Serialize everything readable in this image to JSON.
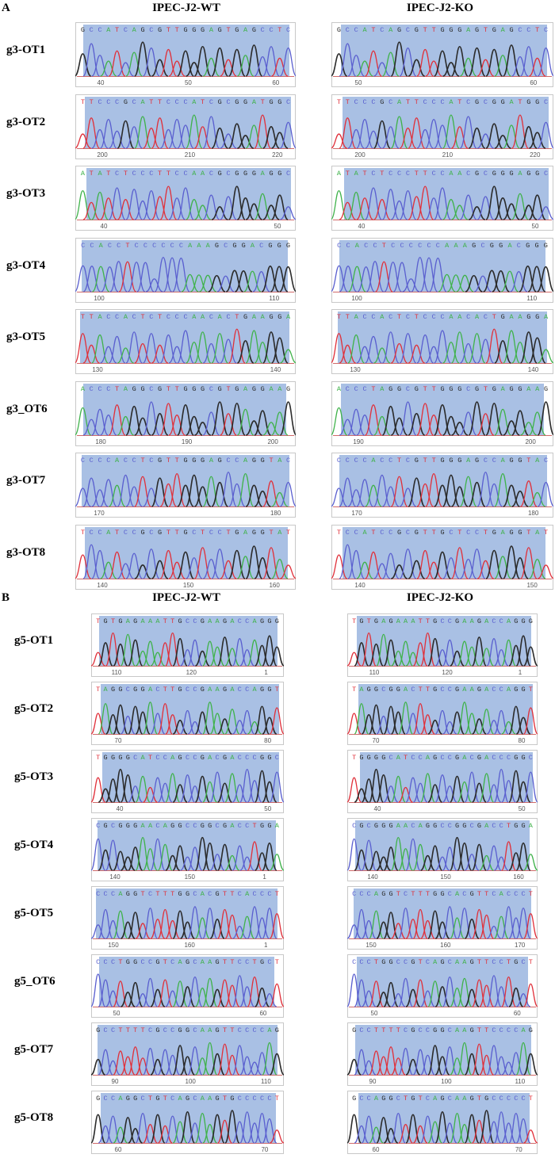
{
  "panels": [
    {
      "letter": "A",
      "columns": [
        "IPEC-J2-WT",
        "IPEC-J2-KO"
      ],
      "rows": [
        {
          "label": "g3-OT1",
          "wt": {
            "seq": "GCCATCAGCGTTGGGAGTGAGCCTC",
            "ticks": [
              "40",
              "50",
              "60"
            ]
          },
          "ko": {
            "seq": "GCCATCAGCGTTGGGAGTGAGCCTC",
            "ticks": [
              "50",
              "60"
            ]
          }
        },
        {
          "label": "g3-OT2",
          "wt": {
            "seq": "TTCCCGCATTCCCATCGCGGATGGC",
            "ticks": [
              "200",
              "210",
              "220"
            ]
          },
          "ko": {
            "seq": "TTCCCGCATTCCCATCGCGGATGGC",
            "ticks": [
              "200",
              "210",
              "220"
            ]
          }
        },
        {
          "label": "g3-OT3",
          "wt": {
            "seq": "ATATCTCCCTTCCAACGCGGGAGGC",
            "ticks": [
              "40",
              "50"
            ]
          },
          "ko": {
            "seq": "ATATCTCCCTTCCAACGCGGGAGGC",
            "ticks": [
              "40",
              "50"
            ]
          }
        },
        {
          "label": "g3-OT4",
          "wt": {
            "seq": "CCACCTCCCCCCAAAGCGGACGGG",
            "ticks": [
              "100",
              "110"
            ]
          },
          "ko": {
            "seq": "CCACCTCCCCCCAAAGCGGACGGG",
            "ticks": [
              "100",
              "110"
            ]
          }
        },
        {
          "label": "g3-OT5",
          "wt": {
            "seq": "TTACCACTCTCCCAACACTGAAGGA",
            "ticks": [
              "130",
              "140"
            ]
          },
          "ko": {
            "seq": "TTACCACTCTCCCAACACTGAAGGA",
            "ticks": [
              "130",
              "140"
            ]
          }
        },
        {
          "label": "g3_OT6",
          "wt": {
            "seq": "ACCCTAGGCGTTGGGCGTGAGGAAG",
            "ticks": [
              "180",
              "190",
              "200"
            ]
          },
          "ko": {
            "seq": "ACCCTAGGCGTTGGGCGTGAGGAAG",
            "ticks": [
              "190",
              "200"
            ]
          }
        },
        {
          "label": "g3-OT7",
          "wt": {
            "seq": "CCCCACCTCGTTGGGAGCCAGGTAC",
            "ticks": [
              "170",
              "180"
            ]
          },
          "ko": {
            "seq": "CCCCACCTCGTTGGGAGCCAGGTAC",
            "ticks": [
              "170",
              "180"
            ]
          }
        },
        {
          "label": "g3-OT8",
          "wt": {
            "seq": "TCCATCCGCGTTGCTCCTGAGGTAT",
            "ticks": [
              "140",
              "150",
              "160"
            ]
          },
          "ko": {
            "seq": "TCCATCCGCGTTGCTCCTGAGGTAT",
            "ticks": [
              "140",
              "150"
            ]
          }
        }
      ]
    },
    {
      "letter": "B",
      "columns": [
        "IPEC-J2-WT",
        "IPEC-J2-KO"
      ],
      "rows": [
        {
          "label": "g5-OT1",
          "wt": {
            "seq": "TGTGAGAAATTGCCGAAGACCAGGG",
            "ticks": [
              "110",
              "120",
              "1"
            ]
          },
          "ko": {
            "seq": "TGTGAGAAATTGCCGAAGACCAGGG",
            "ticks": [
              "110",
              "120",
              "1"
            ]
          }
        },
        {
          "label": "g5-OT2",
          "wt": {
            "seq": "TAGGCGGACTTGCCGAAGACCAGGT",
            "ticks": [
              "70",
              "80"
            ]
          },
          "ko": {
            "seq": "TAGGCGGACTTGCCGAAGACCAGGT",
            "ticks": [
              "70",
              "80"
            ]
          }
        },
        {
          "label": "g5-OT3",
          "wt": {
            "seq": "TGGGGCATCCAGCCGACGACCCGGC",
            "ticks": [
              "40",
              "50"
            ]
          },
          "ko": {
            "seq": "TGGGGCATCCAGCCGACGACCCGGC",
            "ticks": [
              "40",
              "50"
            ]
          }
        },
        {
          "label": "g5-OT4",
          "wt": {
            "seq": "CGCGGGAACAGGCCGGCGACCTGGA",
            "ticks": [
              "140",
              "150",
              "1"
            ]
          },
          "ko": {
            "seq": "CGCGGGAACAGGCCGGCGACCTGGA",
            "ticks": [
              "140",
              "150",
              "160"
            ]
          }
        },
        {
          "label": "g5-OT5",
          "wt": {
            "seq": "CCCAGGTCTTTGGCACGTTCACCCT",
            "ticks": [
              "150",
              "160",
              "1"
            ]
          },
          "ko": {
            "seq": "CCCAGGTCTTTGGCACGTTCACCCT",
            "ticks": [
              "150",
              "160",
              "170"
            ]
          }
        },
        {
          "label": "g5_OT6",
          "wt": {
            "seq": "CCCTGGCCGTCAGCAAGTTCCTGCT",
            "ticks": [
              "50",
              "60"
            ]
          },
          "ko": {
            "seq": "CCCTGGCCGTCAGCAAGTTCCTGCT",
            "ticks": [
              "50",
              "60"
            ]
          }
        },
        {
          "label": "g5-OT7",
          "wt": {
            "seq": "GCCTTTTCGCCGGCAAGTTCCCCAG",
            "ticks": [
              "90",
              "100",
              "110"
            ]
          },
          "ko": {
            "seq": "GCCTTTTCGCCGGCAAGTTCCCCAG",
            "ticks": [
              "90",
              "100",
              "110"
            ]
          }
        },
        {
          "label": "g5-OT8",
          "wt": {
            "seq": "GCCAGGCTGTCAGCAAGTGCCCCCT",
            "ticks": [
              "60",
              "70"
            ]
          },
          "ko": {
            "seq": "GCCAGGCTGTCAGCAAGTGCCCCCT",
            "ticks": [
              "60",
              "70"
            ]
          }
        }
      ]
    }
  ],
  "colors": {
    "highlight": "#a9c0e4",
    "A": "#3fb24a",
    "C": "#5a5fcf",
    "G": "#2b2b2b",
    "T": "#e0303a",
    "frame": "#c8c8c8"
  }
}
